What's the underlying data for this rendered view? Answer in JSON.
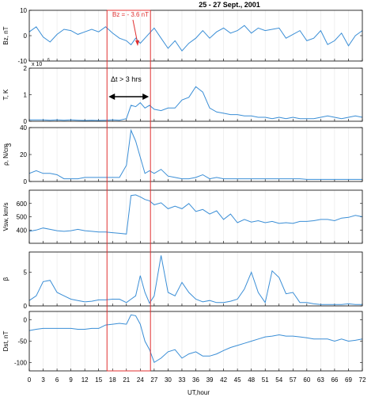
{
  "chart_data": {
    "type": "line",
    "title": "25 - 27 Sept., 2001",
    "xlabel": "UT,hour",
    "xlim": [
      0,
      72
    ],
    "x_ticks": [
      0,
      3,
      6,
      9,
      12,
      15,
      18,
      21,
      24,
      27,
      30,
      33,
      36,
      39,
      42,
      45,
      48,
      51,
      54,
      57,
      60,
      63,
      66,
      69,
      72
    ],
    "event_lines_x": [
      16.8,
      26.2
    ],
    "annotations": {
      "bz": "Bz = - 3.6 nT",
      "dt": "Δt > 3 hrs",
      "t_scale": "x 10"
    },
    "x": [
      0,
      1.5,
      3,
      4.5,
      6,
      7.5,
      9,
      10.5,
      12,
      13.5,
      15,
      16.5,
      18,
      19.5,
      21,
      22,
      23,
      24,
      25,
      26,
      27,
      28.5,
      30,
      31.5,
      33,
      34.5,
      36,
      37.5,
      39,
      40.5,
      42,
      43.5,
      45,
      46.5,
      48,
      49.5,
      51,
      52.5,
      54,
      55.5,
      57,
      58.5,
      60,
      61.5,
      63,
      64.5,
      66,
      67.5,
      69,
      70.5,
      72
    ],
    "panels": [
      {
        "ylabel": "Bz, nT",
        "ylim": [
          -10,
          10
        ],
        "y_ticks": [
          -10,
          0,
          10
        ],
        "values": [
          1.5,
          3.5,
          -0.5,
          -2.5,
          0.5,
          2.5,
          2,
          0.5,
          1.5,
          2.5,
          1.5,
          3.5,
          1,
          -1,
          -2,
          -3.6,
          -1,
          -3,
          -1,
          1,
          3,
          -1,
          -5,
          -2,
          -6,
          -3,
          -1,
          2,
          -1,
          1.5,
          3,
          1,
          2,
          4,
          1,
          3,
          2,
          2.5,
          3,
          -1,
          0.5,
          2,
          -2,
          -1,
          2,
          -3.5,
          -2,
          1,
          -4,
          0,
          2
        ]
      },
      {
        "ylabel": "T, K",
        "ylim": [
          0,
          2
        ],
        "y_ticks": [
          0,
          1,
          2
        ],
        "values": [
          0.05,
          0.05,
          0.05,
          0.04,
          0.05,
          0.04,
          0.05,
          0.04,
          0.03,
          0.04,
          0.03,
          0.04,
          0.05,
          0.04,
          0.1,
          0.6,
          0.55,
          0.7,
          0.5,
          0.6,
          0.45,
          0.4,
          0.5,
          0.5,
          0.8,
          0.9,
          1.3,
          1.1,
          0.5,
          0.35,
          0.3,
          0.25,
          0.25,
          0.2,
          0.2,
          0.15,
          0.15,
          0.1,
          0.15,
          0.1,
          0.15,
          0.1,
          0.1,
          0.1,
          0.15,
          0.2,
          0.15,
          0.1,
          0.15,
          0.2,
          0.15
        ]
      },
      {
        "ylabel": "ρ, N/cm",
        "ylabel_sup": "3",
        "ylim": [
          0,
          40
        ],
        "y_ticks": [
          0,
          20,
          40
        ],
        "values": [
          6,
          8,
          6,
          6,
          5,
          2,
          2,
          2,
          3,
          3,
          3,
          3,
          3,
          3,
          12,
          38,
          30,
          18,
          6,
          8,
          6,
          9,
          4,
          3,
          2,
          2,
          3,
          5,
          2,
          3,
          2,
          2,
          2,
          2,
          2,
          2,
          2,
          2,
          2,
          2,
          2,
          2,
          1.5,
          1.5,
          1.5,
          1.5,
          1.5,
          1.5,
          1.5,
          1.5,
          1.5
        ]
      },
      {
        "ylabel": "Vsw, km/s",
        "ylim": [
          300,
          700
        ],
        "y_ticks": [
          400,
          500,
          600
        ],
        "values": [
          390,
          400,
          415,
          405,
          395,
          390,
          395,
          405,
          395,
          390,
          385,
          385,
          380,
          375,
          370,
          660,
          665,
          650,
          630,
          620,
          590,
          605,
          560,
          580,
          560,
          600,
          540,
          555,
          520,
          545,
          480,
          520,
          455,
          480,
          460,
          470,
          455,
          465,
          450,
          455,
          450,
          465,
          465,
          470,
          480,
          480,
          470,
          490,
          495,
          510,
          500
        ]
      },
      {
        "ylabel": "β",
        "ylim": [
          0,
          8
        ],
        "y_ticks": [
          0,
          5
        ],
        "values": [
          0.8,
          1.5,
          3.6,
          3.8,
          2,
          1.5,
          1,
          0.8,
          0.6,
          0.7,
          0.9,
          0.9,
          1,
          1,
          0.5,
          1,
          1.5,
          4.5,
          2,
          0.4,
          1.5,
          7.5,
          2,
          1.5,
          3.5,
          2,
          1,
          0.6,
          0.8,
          0.5,
          0.5,
          0.7,
          1,
          2.5,
          5,
          2,
          0.5,
          5.2,
          4.2,
          1.8,
          2,
          0.5,
          0.5,
          0.3,
          0.2,
          0.2,
          0.2,
          0.2,
          0.3,
          0.2,
          0.2
        ]
      },
      {
        "ylabel": "Dst, nT",
        "ylim": [
          -120,
          20
        ],
        "y_ticks": [
          -100,
          -50,
          0
        ],
        "values": [
          -25,
          -22,
          -20,
          -20,
          -20,
          -20,
          -20,
          -22,
          -22,
          -20,
          -20,
          -12,
          -10,
          -8,
          -10,
          12,
          10,
          -10,
          -50,
          -70,
          -100,
          -90,
          -75,
          -70,
          -90,
          -80,
          -75,
          -85,
          -85,
          -80,
          -72,
          -65,
          -60,
          -55,
          -50,
          -45,
          -40,
          -38,
          -35,
          -38,
          -38,
          -40,
          -42,
          -45,
          -45,
          -45,
          -50,
          -45,
          -50,
          -48,
          -45
        ]
      }
    ]
  }
}
